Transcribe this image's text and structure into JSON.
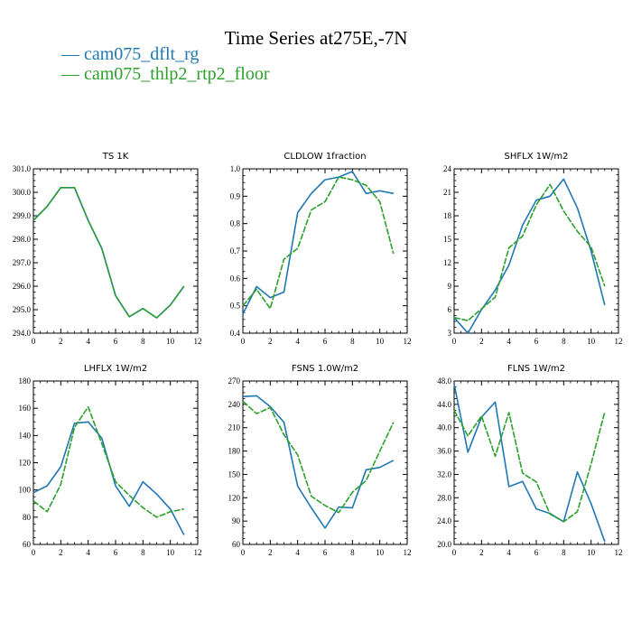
{
  "page": {
    "title": "Time Series at275E,-7N",
    "legend": [
      {
        "name": "cam075_dflt_rg",
        "color": "#1f77b4"
      },
      {
        "name": "cam075_thlp2_rtp2_floor",
        "color": "#2ca02c"
      }
    ]
  },
  "chart_data": [
    {
      "type": "line",
      "title": "TS   1K",
      "x": [
        0,
        1,
        2,
        3,
        4,
        5,
        6,
        7,
        8,
        9,
        10,
        11
      ],
      "xlim": [
        0,
        12
      ],
      "xticks": [
        "0",
        "2",
        "4",
        "6",
        "8",
        "10",
        "12"
      ],
      "ylim": [
        294.0,
        301.0
      ],
      "yticks": [
        "294.0",
        "295.0",
        "296.0",
        "297.0",
        "298.0",
        "299.0",
        "300.0",
        "301.0"
      ],
      "series": [
        {
          "name": "cam075_dflt_rg",
          "values": [
            298.8,
            299.4,
            300.2,
            300.2,
            298.8,
            297.6,
            295.6,
            294.7,
            295.05,
            294.65,
            295.2,
            296.0
          ]
        },
        {
          "name": "cam075_thlp2_rtp2_floor",
          "values": [
            298.8,
            299.4,
            300.2,
            300.2,
            298.8,
            297.6,
            295.6,
            294.7,
            295.05,
            294.65,
            295.2,
            296.0
          ]
        }
      ]
    },
    {
      "type": "line",
      "title": "CLDLOW   1fraction",
      "x": [
        0,
        1,
        2,
        3,
        4,
        5,
        6,
        7,
        8,
        9,
        10,
        11
      ],
      "xlim": [
        0,
        12
      ],
      "xticks": [
        "0",
        "2",
        "4",
        "6",
        "8",
        "10",
        "12"
      ],
      "ylim": [
        0.4,
        1.0
      ],
      "yticks": [
        "0.4",
        "0.5",
        "0.6",
        "0.7",
        "0.8",
        "0.9",
        "1.0"
      ],
      "series": [
        {
          "name": "cam075_dflt_rg",
          "values": [
            0.47,
            0.57,
            0.53,
            0.55,
            0.84,
            0.91,
            0.96,
            0.97,
            0.99,
            0.91,
            0.92,
            0.91
          ]
        },
        {
          "name": "cam075_thlp2_rtp2_floor",
          "values": [
            0.5,
            0.56,
            0.49,
            0.67,
            0.71,
            0.85,
            0.88,
            0.97,
            0.96,
            0.94,
            0.88,
            0.69
          ]
        }
      ]
    },
    {
      "type": "line",
      "title": "SHFLX   1W/m2",
      "x": [
        0,
        1,
        2,
        3,
        4,
        5,
        6,
        7,
        8,
        9,
        10,
        11
      ],
      "xlim": [
        0,
        12
      ],
      "xticks": [
        "0",
        "2",
        "4",
        "6",
        "8",
        "10",
        "12"
      ],
      "ylim": [
        3,
        24
      ],
      "yticks": [
        "3",
        "6",
        "9",
        "12",
        "15",
        "18",
        "21",
        "24"
      ],
      "series": [
        {
          "name": "cam075_dflt_rg",
          "values": [
            5.0,
            3.0,
            6.0,
            8.5,
            11.7,
            16.8,
            20.0,
            20.5,
            22.7,
            19.0,
            13.5,
            6.6
          ]
        },
        {
          "name": "cam075_thlp2_rtp2_floor",
          "values": [
            5.0,
            4.6,
            6.1,
            7.6,
            13.9,
            15.4,
            19.4,
            22.0,
            18.6,
            16.0,
            14.0,
            9.0
          ]
        }
      ]
    },
    {
      "type": "line",
      "title": "LHFLX   1W/m2",
      "x": [
        0,
        1,
        2,
        3,
        4,
        5,
        6,
        7,
        8,
        9,
        10,
        11
      ],
      "xlim": [
        0,
        12
      ],
      "xticks": [
        "0",
        "2",
        "4",
        "6",
        "8",
        "10",
        "12"
      ],
      "ylim": [
        60,
        180
      ],
      "yticks": [
        "60",
        "80",
        "100",
        "120",
        "140",
        "160",
        "180"
      ],
      "series": [
        {
          "name": "cam075_dflt_rg",
          "values": [
            98,
            103,
            117,
            149,
            150,
            138,
            103,
            88,
            106,
            97,
            86,
            67
          ]
        },
        {
          "name": "cam075_thlp2_rtp2_floor",
          "values": [
            92,
            84,
            104,
            146,
            161,
            134,
            106,
            96,
            87,
            80,
            84,
            86
          ]
        }
      ]
    },
    {
      "type": "line",
      "title": "FSNS   1.0W/m2",
      "x": [
        0,
        1,
        2,
        3,
        4,
        5,
        6,
        7,
        8,
        9,
        10,
        11
      ],
      "xlim": [
        0,
        12
      ],
      "xticks": [
        "0",
        "2",
        "4",
        "6",
        "8",
        "10",
        "12"
      ],
      "ylim": [
        60,
        270
      ],
      "yticks": [
        "60",
        "90",
        "120",
        "150",
        "180",
        "210",
        "240",
        "270"
      ],
      "series": [
        {
          "name": "cam075_dflt_rg",
          "values": [
            250,
            251,
            237,
            217,
            135,
            107,
            81,
            108,
            107,
            156,
            159,
            168
          ]
        },
        {
          "name": "cam075_thlp2_rtp2_floor",
          "values": [
            244,
            228,
            236,
            201,
            175,
            122,
            110,
            101,
            127,
            142,
            180,
            217
          ]
        }
      ]
    },
    {
      "type": "line",
      "title": "FLNS   1W/m2",
      "x": [
        0,
        1,
        2,
        3,
        4,
        5,
        6,
        7,
        8,
        9,
        10,
        11
      ],
      "xlim": [
        0,
        12
      ],
      "xticks": [
        "0",
        "2",
        "4",
        "6",
        "8",
        "10",
        "12"
      ],
      "ylim": [
        20,
        48
      ],
      "yticks": [
        "20.0",
        "24.0",
        "28.0",
        "32.0",
        "36.0",
        "40.0",
        "44.0",
        "48.0"
      ],
      "series": [
        {
          "name": "cam075_dflt_rg",
          "values": [
            47.5,
            35.8,
            41.8,
            44.4,
            29.9,
            30.8,
            26.1,
            25.3,
            23.9,
            32.4,
            27.0,
            20.5
          ]
        },
        {
          "name": "cam075_thlp2_rtp2_floor",
          "values": [
            43.0,
            38.6,
            42.0,
            35.1,
            42.6,
            32.2,
            30.7,
            25.2,
            23.9,
            25.6,
            33.8,
            42.7
          ]
        }
      ]
    }
  ]
}
